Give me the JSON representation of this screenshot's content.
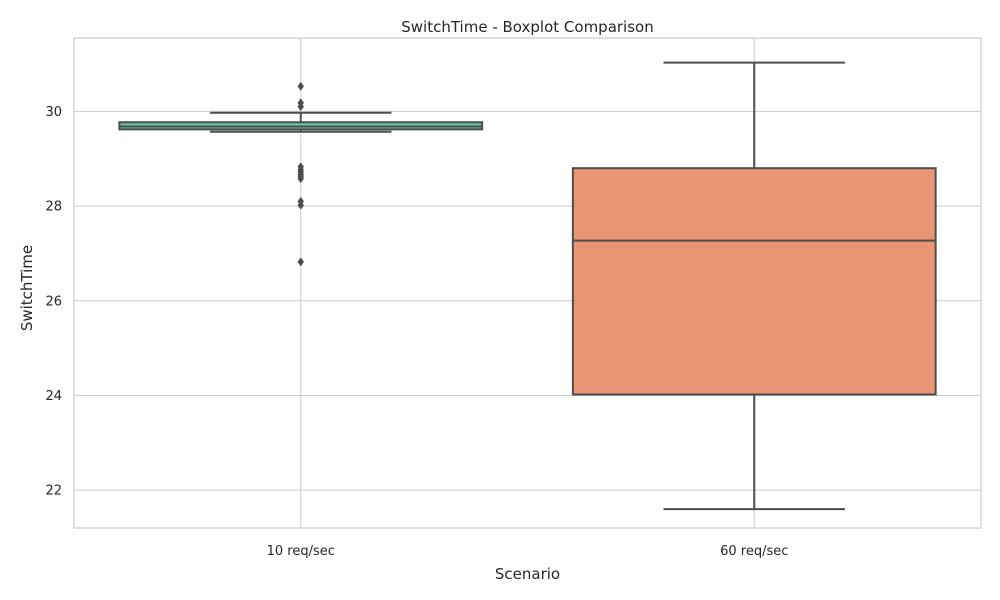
{
  "chart_data": {
    "type": "boxplot",
    "title": "SwitchTime - Boxplot Comparison",
    "xlabel": "Scenario",
    "ylabel": "SwitchTime",
    "categories": [
      "10 req/sec",
      "60 req/sec"
    ],
    "ylim": [
      21.2,
      31.55
    ],
    "yticks": [
      22,
      24,
      26,
      28,
      30
    ],
    "grid": true,
    "boxes": [
      {
        "category": "10 req/sec",
        "whisker_low": 29.57,
        "q1": 29.62,
        "median": 29.68,
        "q3": 29.77,
        "whisker_high": 29.97,
        "fliers": [
          30.53,
          30.18,
          30.1,
          28.83,
          28.77,
          28.72,
          28.67,
          28.63,
          28.58,
          28.1,
          28.02,
          26.82
        ]
      },
      {
        "category": "60 req/sec",
        "whisker_low": 21.6,
        "q1": 24.02,
        "median": 27.27,
        "q3": 28.8,
        "whisker_high": 31.03,
        "fliers": []
      }
    ],
    "colors": {
      "box_10": "#66c2a5",
      "box_60": "#e99675",
      "line": "#4d4d4d",
      "grid": "#cccccc",
      "spine": "#cccccc"
    }
  }
}
